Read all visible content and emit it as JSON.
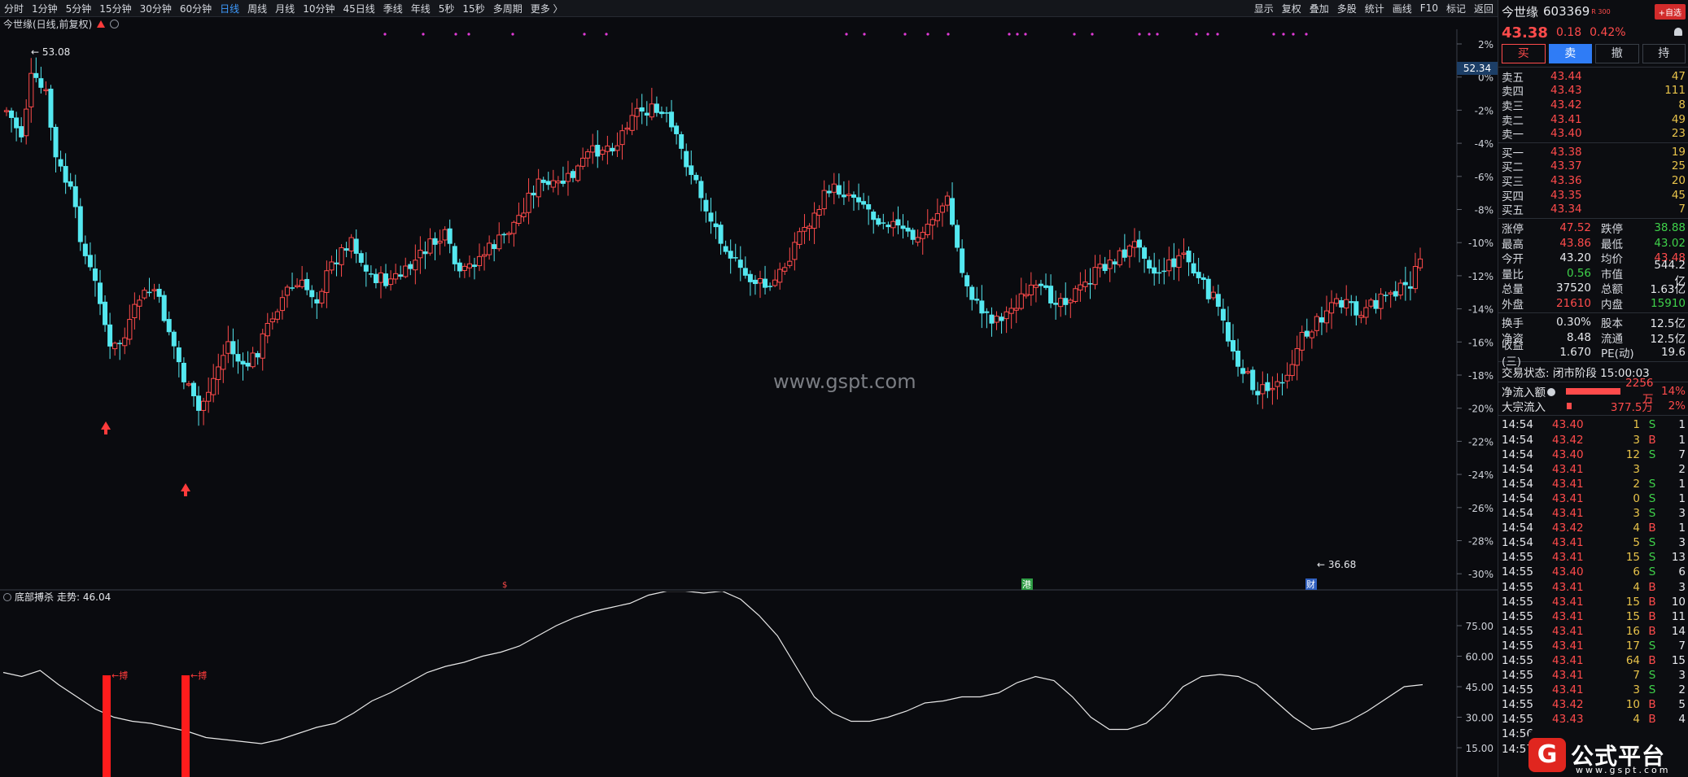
{
  "toolbar": {
    "periods": [
      "分时",
      "1分钟",
      "5分钟",
      "15分钟",
      "30分钟",
      "60分钟",
      "日线",
      "周线",
      "月线",
      "10分钟",
      "45日线",
      "季线",
      "年线",
      "5秒",
      "15秒",
      "多周期",
      "更多 〉"
    ],
    "active": "日线",
    "right_tools": [
      "显示",
      "复权",
      "叠加",
      "多股",
      "统计",
      "画线",
      "F10",
      "标记",
      "返回"
    ]
  },
  "stock_line": "今世缘(日线,前复权)",
  "watermark": "www.gspt.com",
  "main_chart": {
    "right_axis": [
      "2%",
      "0%",
      "-2%",
      "-4%",
      "-6%",
      "-8%",
      "-10%",
      "-12%",
      "-14%",
      "-16%",
      "-18%",
      "-20%",
      "-22%",
      "-24%",
      "-26%",
      "-28%",
      "-30%"
    ],
    "price_tag": "52.34",
    "high_label": "53.08",
    "low_label": "36.68",
    "event_marks": [
      "$",
      "港",
      "财"
    ]
  },
  "indicator": {
    "title": "底部搏杀",
    "trend_label": "走势: 46.04",
    "axis": [
      "75.00",
      "60.00",
      "45.00",
      "30.00",
      "15.00"
    ],
    "signal_label": "搏"
  },
  "chart_data": {
    "type": "line",
    "ylim": [
      0,
      100
    ],
    "series": [
      {
        "name": "走势",
        "values": [
          52,
          50,
          53,
          46,
          40,
          34,
          30,
          28,
          27,
          25,
          23,
          20,
          19,
          18,
          17,
          19,
          22,
          25,
          27,
          32,
          38,
          42,
          47,
          52,
          55,
          57,
          60,
          62,
          65,
          70,
          75,
          79,
          82,
          84,
          86,
          90,
          92,
          92,
          91,
          92,
          88,
          80,
          70,
          55,
          40,
          32,
          28,
          28,
          30,
          33,
          37,
          38,
          40,
          40,
          42,
          47,
          50,
          48,
          40,
          30,
          24,
          24,
          27,
          35,
          45,
          50,
          51,
          50,
          46,
          38,
          30,
          24,
          25,
          28,
          33,
          39,
          45,
          46
        ]
      }
    ]
  },
  "panel": {
    "name": "今世缘",
    "code": "603369",
    "tag": "R 300",
    "watch_btn": "+自选",
    "price": "43.38",
    "change": "0.18",
    "pct": "0.42%",
    "buttons": [
      "买",
      "卖",
      "撤",
      "持"
    ],
    "asks": [
      {
        "label": "卖五",
        "price": "43.44",
        "vol": "47"
      },
      {
        "label": "卖四",
        "price": "43.43",
        "vol": "111"
      },
      {
        "label": "卖三",
        "price": "43.42",
        "vol": "8"
      },
      {
        "label": "卖二",
        "price": "43.41",
        "vol": "49"
      },
      {
        "label": "卖一",
        "price": "43.40",
        "vol": "23"
      }
    ],
    "bids": [
      {
        "label": "买一",
        "price": "43.38",
        "vol": "19"
      },
      {
        "label": "买二",
        "price": "43.37",
        "vol": "25"
      },
      {
        "label": "买三",
        "price": "43.36",
        "vol": "20"
      },
      {
        "label": "买四",
        "price": "43.35",
        "vol": "45"
      },
      {
        "label": "买五",
        "price": "43.34",
        "vol": "7"
      }
    ],
    "stats1": [
      {
        "k1": "涨停",
        "v1": "47.52",
        "c1": "red",
        "k2": "跌停",
        "v2": "38.88",
        "c2": "green"
      },
      {
        "k1": "最高",
        "v1": "43.86",
        "c1": "red",
        "k2": "最低",
        "v2": "43.02",
        "c2": "green"
      },
      {
        "k1": "今开",
        "v1": "43.20",
        "c1": "white",
        "k2": "均价",
        "v2": "43.48",
        "c2": "red"
      },
      {
        "k1": "量比",
        "v1": "0.56",
        "c1": "green",
        "k2": "市值",
        "v2": "544.2亿",
        "c2": "white"
      },
      {
        "k1": "总量",
        "v1": "37520",
        "c1": "white",
        "k2": "总额",
        "v2": "1.63亿",
        "c2": "white"
      },
      {
        "k1": "外盘",
        "v1": "21610",
        "c1": "red",
        "k2": "内盘",
        "v2": "15910",
        "c2": "green"
      }
    ],
    "stats2": [
      {
        "k1": "换手",
        "v1": "0.30%",
        "c1": "white",
        "k2": "股本",
        "v2": "12.5亿",
        "c2": "white"
      },
      {
        "k1": "净资",
        "v1": "8.48",
        "c1": "white",
        "k2": "流通",
        "v2": "12.5亿",
        "c2": "white"
      },
      {
        "k1": "收益(三)",
        "v1": "1.670",
        "c1": "white",
        "k2": "PE(动)",
        "v2": "19.6",
        "c2": "white"
      }
    ],
    "trade_state": "交易状态: 闭市阶段 15:00:03",
    "flows": [
      {
        "label": "净流入额",
        "value": "2256万",
        "pct": "14%",
        "bar": 0.85
      },
      {
        "label": "大宗流入",
        "value": "377.5万",
        "pct": "2%",
        "bar": 0.08
      }
    ],
    "ticks": [
      {
        "t": "14:54",
        "p": "43.40",
        "v": "1",
        "d": "S",
        "n": "1"
      },
      {
        "t": "14:54",
        "p": "43.42",
        "v": "3",
        "d": "B",
        "n": "1"
      },
      {
        "t": "14:54",
        "p": "43.40",
        "v": "12",
        "d": "S",
        "n": "7"
      },
      {
        "t": "14:54",
        "p": "43.41",
        "v": "3",
        "d": "",
        "n": "2"
      },
      {
        "t": "14:54",
        "p": "43.41",
        "v": "2",
        "d": "S",
        "n": "1"
      },
      {
        "t": "14:54",
        "p": "43.41",
        "v": "0",
        "d": "S",
        "n": "1"
      },
      {
        "t": "14:54",
        "p": "43.41",
        "v": "3",
        "d": "S",
        "n": "3"
      },
      {
        "t": "14:54",
        "p": "43.42",
        "v": "4",
        "d": "B",
        "n": "1"
      },
      {
        "t": "14:54",
        "p": "43.41",
        "v": "5",
        "d": "S",
        "n": "3"
      },
      {
        "t": "14:55",
        "p": "43.41",
        "v": "15",
        "d": "S",
        "n": "13"
      },
      {
        "t": "14:55",
        "p": "43.40",
        "v": "6",
        "d": "S",
        "n": "6"
      },
      {
        "t": "14:55",
        "p": "43.41",
        "v": "4",
        "d": "B",
        "n": "3"
      },
      {
        "t": "14:55",
        "p": "43.41",
        "v": "15",
        "d": "B",
        "n": "10"
      },
      {
        "t": "14:55",
        "p": "43.41",
        "v": "15",
        "d": "B",
        "n": "11"
      },
      {
        "t": "14:55",
        "p": "43.41",
        "v": "16",
        "d": "B",
        "n": "14"
      },
      {
        "t": "14:55",
        "p": "43.41",
        "v": "17",
        "d": "S",
        "n": "7"
      },
      {
        "t": "14:55",
        "p": "43.41",
        "v": "64",
        "d": "B",
        "n": "15"
      },
      {
        "t": "14:55",
        "p": "43.41",
        "v": "7",
        "d": "S",
        "n": "3"
      },
      {
        "t": "14:55",
        "p": "43.41",
        "v": "3",
        "d": "S",
        "n": "2"
      },
      {
        "t": "14:55",
        "p": "43.42",
        "v": "10",
        "d": "B",
        "n": "5"
      },
      {
        "t": "14:55",
        "p": "43.43",
        "v": "4",
        "d": "B",
        "n": "4"
      },
      {
        "t": "14:56",
        "p": "",
        "v": "",
        "d": "",
        "n": ""
      },
      {
        "t": "14:57",
        "p": "",
        "v": "",
        "d": "",
        "n": ""
      }
    ]
  },
  "logo": {
    "icon": "G",
    "text": "公式平台",
    "sub": "www.gspt.com"
  }
}
